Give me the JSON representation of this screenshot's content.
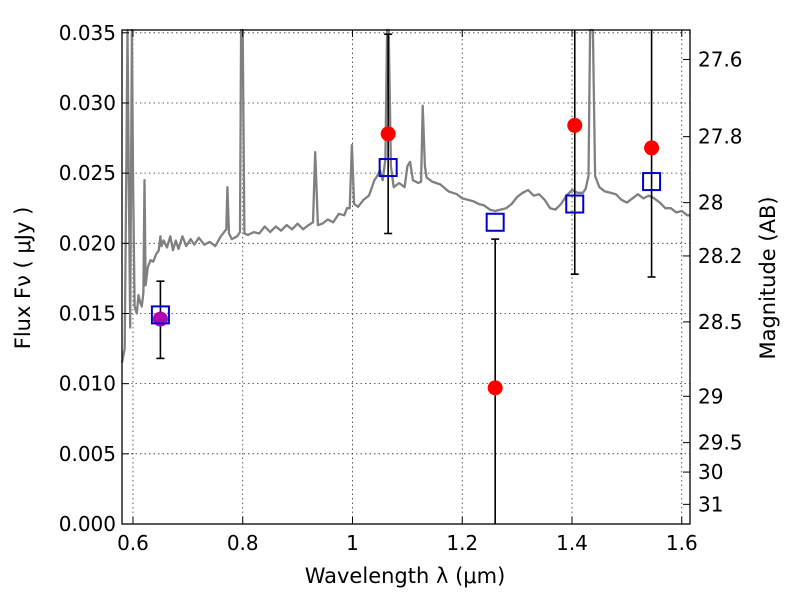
{
  "chart_data": {
    "type": "scatter",
    "xlabel": "Wavelength  λ (μm)",
    "ylabel": "Flux  Fν  ( μJy )",
    "ylabel_right": "Magnitude (AB)",
    "xlim": [
      0.58,
      1.615
    ],
    "ylim": [
      0.0,
      0.0352
    ],
    "x_ticks": [
      0.6,
      0.8,
      1.0,
      1.2,
      1.4,
      1.6
    ],
    "x_tick_labels": [
      "0.6",
      "0.8",
      "1",
      "1.2",
      "1.4",
      "1.6"
    ],
    "y_ticks": [
      0.0,
      0.005,
      0.01,
      0.015,
      0.02,
      0.025,
      0.03,
      0.035
    ],
    "y_tick_labels": [
      "0.000",
      "0.005",
      "0.010",
      "0.015",
      "0.020",
      "0.025",
      "0.030",
      "0.035"
    ],
    "right_ticks": [
      {
        "flux": 0.0331,
        "label": "27.6"
      },
      {
        "flux": 0.0276,
        "label": "27.8"
      },
      {
        "flux": 0.0229,
        "label": "28"
      },
      {
        "flux": 0.0191,
        "label": "28.2"
      },
      {
        "flux": 0.0144,
        "label": "28.5"
      },
      {
        "flux": 0.0091,
        "label": "29"
      },
      {
        "flux": 0.0058,
        "label": "29.5"
      },
      {
        "flux": 0.0037,
        "label": "30"
      },
      {
        "flux": 0.0014,
        "label": "31"
      }
    ],
    "grid": true,
    "series": [
      {
        "kind": "model_spectrum",
        "color": "#808080",
        "points": [
          [
            0.58,
            0.0115
          ],
          [
            0.585,
            0.0125
          ],
          [
            0.588,
            0.026
          ],
          [
            0.59,
            0.0352
          ],
          [
            0.592,
            0.026
          ],
          [
            0.595,
            0.014
          ],
          [
            0.598,
            0.0352
          ],
          [
            0.6,
            0.025
          ],
          [
            0.603,
            0.0155
          ],
          [
            0.607,
            0.015
          ],
          [
            0.61,
            0.0163
          ],
          [
            0.613,
            0.0158
          ],
          [
            0.616,
            0.0155
          ],
          [
            0.619,
            0.0165
          ],
          [
            0.621,
            0.0245
          ],
          [
            0.623,
            0.017
          ],
          [
            0.627,
            0.0183
          ],
          [
            0.632,
            0.0188
          ],
          [
            0.637,
            0.0187
          ],
          [
            0.642,
            0.0192
          ],
          [
            0.647,
            0.0195
          ],
          [
            0.65,
            0.0205
          ],
          [
            0.652,
            0.0198
          ],
          [
            0.656,
            0.0202
          ],
          [
            0.662,
            0.0197
          ],
          [
            0.668,
            0.0205
          ],
          [
            0.673,
            0.0195
          ],
          [
            0.678,
            0.0202
          ],
          [
            0.683,
            0.0196
          ],
          [
            0.69,
            0.0205
          ],
          [
            0.697,
            0.0198
          ],
          [
            0.705,
            0.0203
          ],
          [
            0.712,
            0.0199
          ],
          [
            0.72,
            0.0204
          ],
          [
            0.73,
            0.0199
          ],
          [
            0.74,
            0.0201
          ],
          [
            0.75,
            0.0198
          ],
          [
            0.76,
            0.0205
          ],
          [
            0.766,
            0.0208
          ],
          [
            0.77,
            0.021
          ],
          [
            0.772,
            0.024
          ],
          [
            0.775,
            0.0207
          ],
          [
            0.78,
            0.0203
          ],
          [
            0.79,
            0.0205
          ],
          [
            0.795,
            0.0208
          ],
          [
            0.797,
            0.0352
          ],
          [
            0.8,
            0.0352
          ],
          [
            0.803,
            0.0207
          ],
          [
            0.81,
            0.0206
          ],
          [
            0.82,
            0.0208
          ],
          [
            0.83,
            0.0207
          ],
          [
            0.84,
            0.0212
          ],
          [
            0.85,
            0.0208
          ],
          [
            0.86,
            0.0212
          ],
          [
            0.87,
            0.0209
          ],
          [
            0.88,
            0.0213
          ],
          [
            0.89,
            0.021
          ],
          [
            0.9,
            0.0214
          ],
          [
            0.91,
            0.021
          ],
          [
            0.92,
            0.0213
          ],
          [
            0.928,
            0.0215
          ],
          [
            0.932,
            0.0265
          ],
          [
            0.937,
            0.0213
          ],
          [
            0.945,
            0.0214
          ],
          [
            0.955,
            0.0217
          ],
          [
            0.965,
            0.0215
          ],
          [
            0.975,
            0.0221
          ],
          [
            0.985,
            0.022
          ],
          [
            0.99,
            0.0225
          ],
          [
            0.995,
            0.0225
          ],
          [
            0.999,
            0.027
          ],
          [
            1.003,
            0.0228
          ],
          [
            1.01,
            0.0226
          ],
          [
            1.02,
            0.0231
          ],
          [
            1.03,
            0.0234
          ],
          [
            1.04,
            0.0245
          ],
          [
            1.045,
            0.0248
          ],
          [
            1.05,
            0.0252
          ],
          [
            1.055,
            0.0245
          ],
          [
            1.06,
            0.026
          ],
          [
            1.063,
            0.0352
          ],
          [
            1.066,
            0.0352
          ],
          [
            1.07,
            0.0255
          ],
          [
            1.075,
            0.024
          ],
          [
            1.085,
            0.0243
          ],
          [
            1.095,
            0.024
          ],
          [
            1.1,
            0.0255
          ],
          [
            1.105,
            0.0258
          ],
          [
            1.11,
            0.0245
          ],
          [
            1.12,
            0.0243
          ],
          [
            1.125,
            0.0244
          ],
          [
            1.128,
            0.0298
          ],
          [
            1.132,
            0.0255
          ],
          [
            1.135,
            0.0247
          ],
          [
            1.145,
            0.0244
          ],
          [
            1.16,
            0.0242
          ],
          [
            1.175,
            0.0237
          ],
          [
            1.19,
            0.0235
          ],
          [
            1.2,
            0.0232
          ],
          [
            1.21,
            0.0231
          ],
          [
            1.22,
            0.023
          ],
          [
            1.23,
            0.0228
          ],
          [
            1.24,
            0.0227
          ],
          [
            1.25,
            0.0224
          ],
          [
            1.26,
            0.0223
          ],
          [
            1.27,
            0.0224
          ],
          [
            1.28,
            0.0225
          ],
          [
            1.29,
            0.0228
          ],
          [
            1.3,
            0.0233
          ],
          [
            1.31,
            0.0236
          ],
          [
            1.32,
            0.0238
          ],
          [
            1.33,
            0.0234
          ],
          [
            1.34,
            0.0235
          ],
          [
            1.35,
            0.0231
          ],
          [
            1.36,
            0.0225
          ],
          [
            1.37,
            0.0224
          ],
          [
            1.38,
            0.0228
          ],
          [
            1.39,
            0.0234
          ],
          [
            1.4,
            0.0238
          ],
          [
            1.41,
            0.0236
          ],
          [
            1.42,
            0.0236
          ],
          [
            1.425,
            0.0239
          ],
          [
            1.43,
            0.0248
          ],
          [
            1.433,
            0.0352
          ],
          [
            1.438,
            0.0352
          ],
          [
            1.442,
            0.0248
          ],
          [
            1.45,
            0.024
          ],
          [
            1.46,
            0.0237
          ],
          [
            1.47,
            0.0236
          ],
          [
            1.48,
            0.0235
          ],
          [
            1.49,
            0.0231
          ],
          [
            1.5,
            0.0229
          ],
          [
            1.51,
            0.0232
          ],
          [
            1.52,
            0.0235
          ],
          [
            1.53,
            0.0232
          ],
          [
            1.54,
            0.0234
          ],
          [
            1.55,
            0.0232
          ],
          [
            1.56,
            0.0229
          ],
          [
            1.57,
            0.0225
          ],
          [
            1.58,
            0.0225
          ],
          [
            1.59,
            0.0222
          ],
          [
            1.6,
            0.0223
          ],
          [
            1.61,
            0.022
          ],
          [
            1.615,
            0.022
          ]
        ]
      },
      {
        "kind": "observed",
        "color": "#ff0000",
        "points": [
          {
            "x": 0.65,
            "y": 0.0146,
            "err_low": 0.0118,
            "err_high": 0.0173
          },
          {
            "x": 1.065,
            "y": 0.0278,
            "err_low": 0.0207,
            "err_high": 0.0349
          },
          {
            "x": 1.26,
            "y": 0.0097,
            "err_low": 0.0,
            "err_high": 0.0203
          },
          {
            "x": 1.405,
            "y": 0.0284,
            "err_low": 0.0178,
            "err_high": 0.0352
          },
          {
            "x": 1.545,
            "y": 0.0268,
            "err_low": 0.0176,
            "err_high": 0.0352
          }
        ]
      },
      {
        "kind": "model_photometry",
        "color": "#0000cc",
        "points": [
          {
            "x": 0.65,
            "y": 0.0149
          },
          {
            "x": 1.065,
            "y": 0.0254
          },
          {
            "x": 1.26,
            "y": 0.0215
          },
          {
            "x": 1.405,
            "y": 0.0228
          },
          {
            "x": 1.545,
            "y": 0.0244
          }
        ]
      }
    ],
    "overlap_color": "#b000b0"
  }
}
